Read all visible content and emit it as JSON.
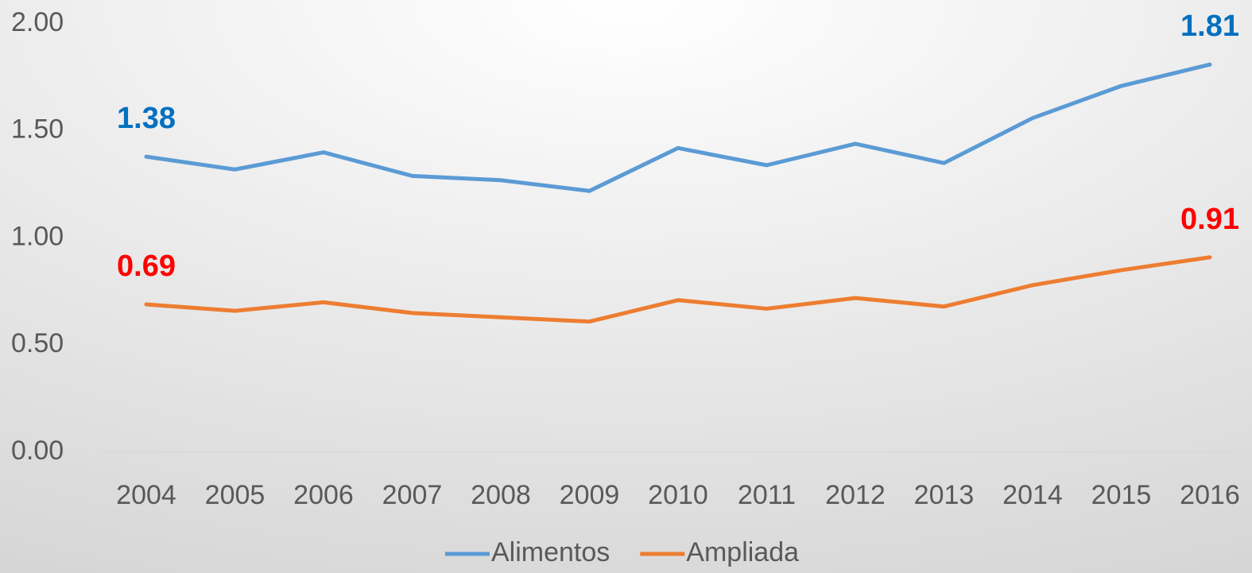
{
  "chart_data": {
    "type": "line",
    "categories": [
      "2004",
      "2005",
      "2006",
      "2007",
      "2008",
      "2009",
      "2010",
      "2011",
      "2012",
      "2013",
      "2014",
      "2015",
      "2016"
    ],
    "series": [
      {
        "name": "Alimentos",
        "color": "#5b9bd5",
        "label_color": "#0070c0",
        "values": [
          1.38,
          1.32,
          1.4,
          1.29,
          1.27,
          1.22,
          1.42,
          1.34,
          1.44,
          1.35,
          1.56,
          1.71,
          1.81
        ],
        "value_labels": [
          "1.38",
          null,
          null,
          null,
          null,
          null,
          null,
          null,
          null,
          null,
          null,
          null,
          "1.81"
        ]
      },
      {
        "name": "Ampliada",
        "color": "#ed7d31",
        "label_color": "#ff0000",
        "values": [
          0.69,
          0.66,
          0.7,
          0.65,
          0.63,
          0.61,
          0.71,
          0.67,
          0.72,
          0.68,
          0.78,
          0.85,
          0.91
        ],
        "value_labels": [
          "0.69",
          null,
          null,
          null,
          null,
          null,
          null,
          null,
          null,
          null,
          null,
          null,
          "0.91"
        ]
      }
    ],
    "ylim": [
      0,
      2
    ],
    "yticks": [
      {
        "value": 0,
        "label": "0.00"
      },
      {
        "value": 0.5,
        "label": "0.50"
      },
      {
        "value": 1,
        "label": "1.00"
      },
      {
        "value": 1.5,
        "label": "1.50"
      },
      {
        "value": 2,
        "label": "2.00"
      }
    ],
    "grid": false,
    "legend": "bottom"
  }
}
